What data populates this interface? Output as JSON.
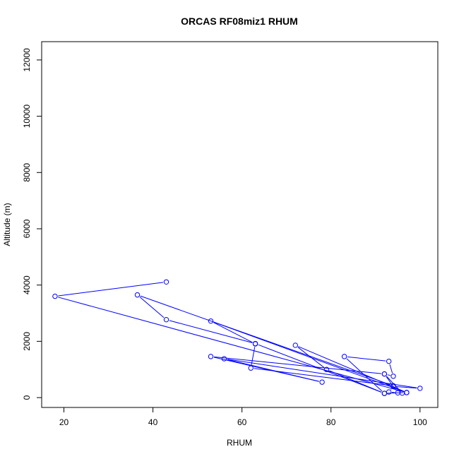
{
  "chart_data": {
    "type": "line",
    "title": "ORCAS RF08miz1 RHUM",
    "xlabel": "RHUM",
    "ylabel": "Altitude (m)",
    "xlim": [
      15,
      104
    ],
    "ylim": [
      -350,
      12650
    ],
    "x_ticks": [
      20,
      40,
      60,
      80,
      100
    ],
    "y_ticks": [
      0,
      2000,
      4000,
      6000,
      8000,
      10000,
      12000
    ],
    "grid": false,
    "legend": "none",
    "markers": "open-circle",
    "color": "#0000ff",
    "series": [
      {
        "x": [
          43,
          18,
          97,
          53,
          63,
          62,
          94,
          36.5,
          43,
          63,
          92,
          79,
          72,
          97,
          92,
          83,
          93,
          94,
          92,
          95,
          93,
          94,
          100,
          56,
          78,
          53,
          92,
          96
        ],
        "y": [
          4110,
          3600,
          180,
          2720,
          1910,
          1050,
          420,
          3650,
          2770,
          1920,
          150,
          1000,
          1860,
          180,
          150,
          1460,
          1290,
          760,
          840,
          170,
          200,
          400,
          330,
          1380,
          550,
          1460,
          840,
          160
        ]
      }
    ]
  }
}
